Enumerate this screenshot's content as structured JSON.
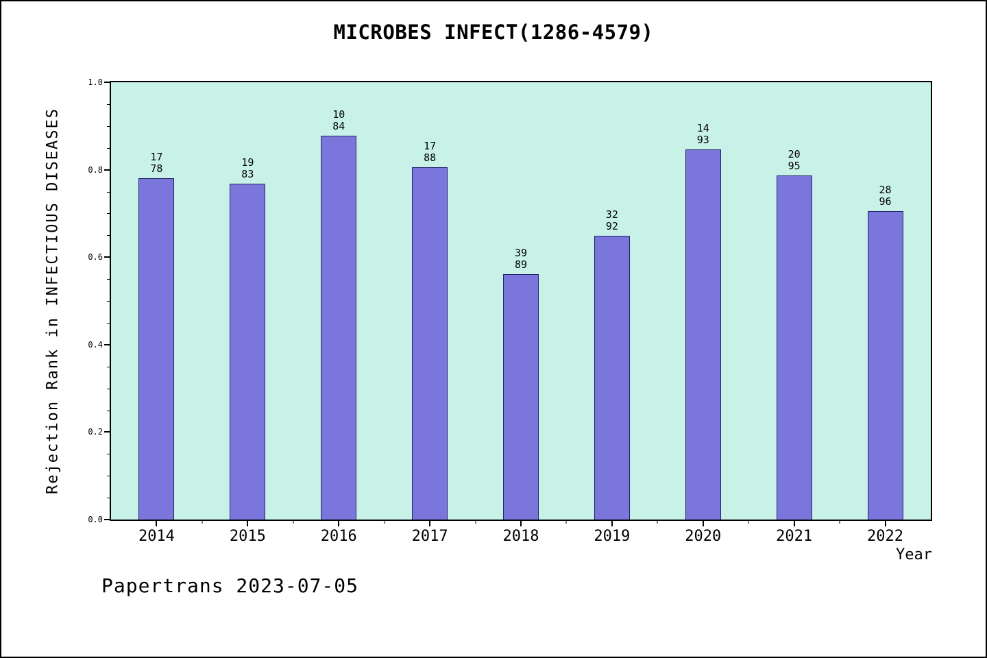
{
  "title": "MICROBES INFECT(1286-4579)",
  "footer": "Papertrans 2023-07-05",
  "chart_data": {
    "type": "bar",
    "title": "MICROBES INFECT(1286-4579)",
    "xlabel": "Year",
    "ylabel": "Rejection Rank in INFECTIOUS DISEASES",
    "ylim": [
      0.0,
      1.0
    ],
    "ytick_labels": [
      "0.0",
      "0.2",
      "0.4",
      "0.6",
      "0.8",
      "1.0"
    ],
    "grid": false,
    "legend": false,
    "categories": [
      "2014",
      "2015",
      "2016",
      "2017",
      "2018",
      "2019",
      "2020",
      "2021",
      "2022"
    ],
    "values": [
      0.78,
      0.768,
      0.877,
      0.805,
      0.561,
      0.649,
      0.847,
      0.787,
      0.706
    ],
    "bar_labels": [
      [
        "17",
        "78"
      ],
      [
        "19",
        "83"
      ],
      [
        "10",
        "84"
      ],
      [
        "17",
        "88"
      ],
      [
        "39",
        "89"
      ],
      [
        "32",
        "92"
      ],
      [
        "14",
        "93"
      ],
      [
        "20",
        "95"
      ],
      [
        "28",
        "96"
      ]
    ],
    "colors": {
      "bar": "#7b76db",
      "plot_background": "#c8f2e8",
      "axis": "#000000"
    }
  }
}
